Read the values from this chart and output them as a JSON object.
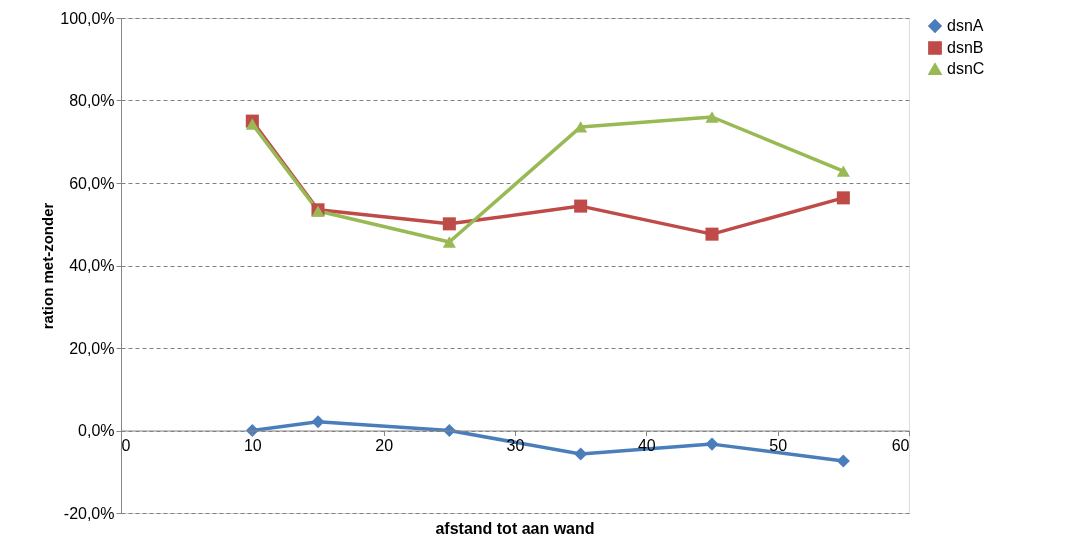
{
  "chart_data": {
    "type": "line",
    "xlabel": "afstand tot aan wand",
    "ylabel": "ration met-zonder",
    "x": [
      10,
      15,
      25,
      35,
      45,
      55
    ],
    "series": [
      {
        "name": "dsnA",
        "color": "#4a7ebb",
        "marker": "diamond",
        "values": [
          0,
          2.1,
          0,
          -5.7,
          -3.3,
          -7.4
        ]
      },
      {
        "name": "dsnB",
        "color": "#be4b48",
        "marker": "square",
        "values": [
          75.0,
          53.5,
          50.1,
          54.4,
          47.6,
          56.4
        ]
      },
      {
        "name": "dsnC",
        "color": "#98b954",
        "marker": "triangle",
        "values": [
          74.3,
          53.2,
          45.7,
          73.6,
          76.0,
          62.9
        ]
      }
    ],
    "xlim": [
      0,
      60
    ],
    "xticks": [
      0,
      10,
      20,
      30,
      40,
      50,
      60
    ],
    "ylim": [
      -20,
      100
    ],
    "yticks": [
      {
        "value": -20,
        "label": "-20,0%"
      },
      {
        "value": 0,
        "label": "0,0%"
      },
      {
        "value": 20,
        "label": "20,0%"
      },
      {
        "value": 40,
        "label": "40,0%"
      },
      {
        "value": 60,
        "label": "60,0%"
      },
      {
        "value": 80,
        "label": "80,0%"
      },
      {
        "value": 100,
        "label": "100,0%"
      }
    ],
    "grid": "y",
    "legend": "right",
    "line_style": "solid"
  }
}
